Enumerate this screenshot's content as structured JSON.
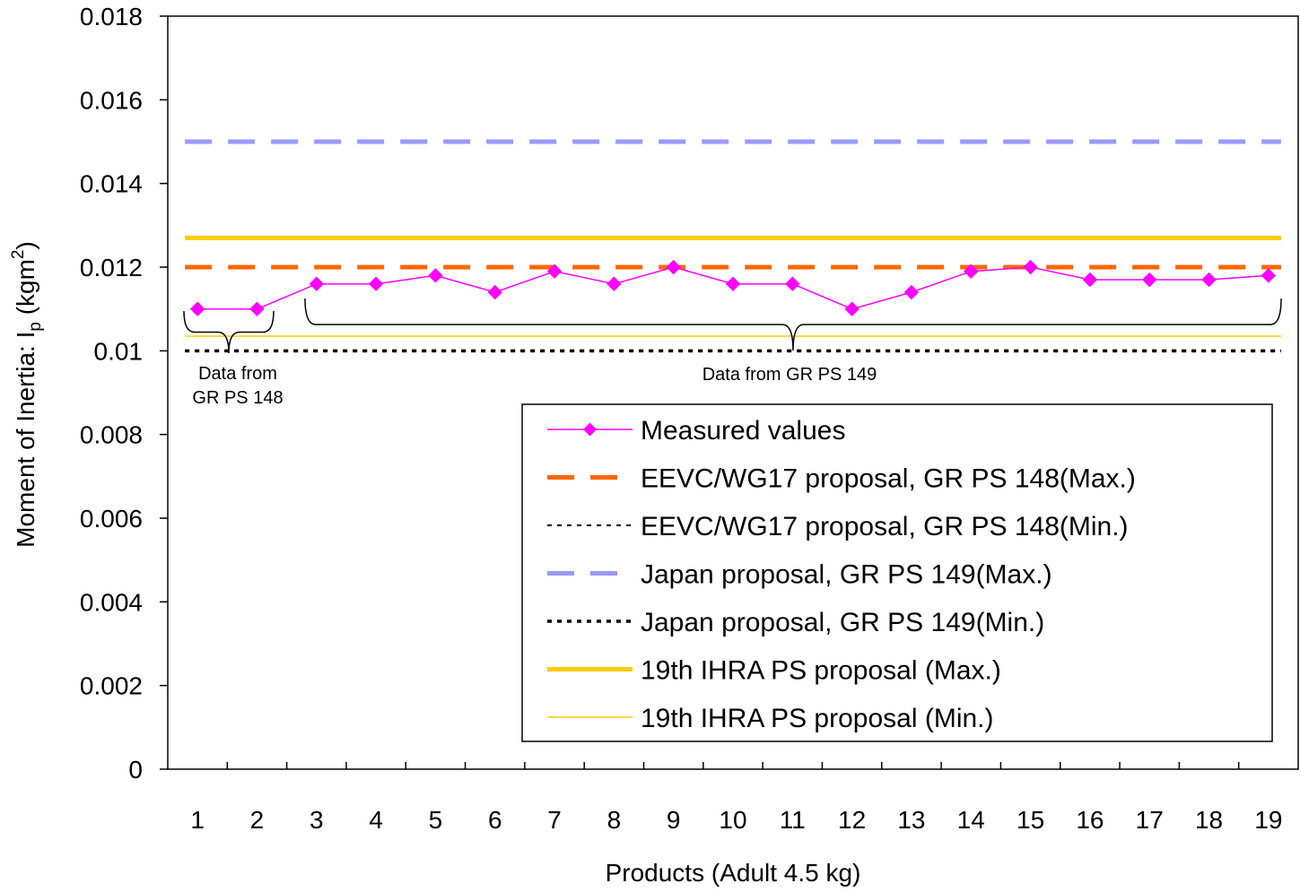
{
  "chart_data": {
    "type": "line",
    "xlabel": "Products (Adult 4.5 kg)",
    "ylabel": {
      "main": "Moment of Inertia: I",
      "sub": "p",
      "unit_open": " (kgm",
      "sup": "2",
      "unit_close": ")"
    },
    "x": [
      1,
      2,
      3,
      4,
      5,
      6,
      7,
      8,
      9,
      10,
      11,
      12,
      13,
      14,
      15,
      16,
      17,
      18,
      19
    ],
    "x_tick_labels": [
      "1",
      "2",
      "3",
      "4",
      "5",
      "6",
      "7",
      "8",
      "9",
      "10",
      "11",
      "12",
      "13",
      "14",
      "15",
      "16",
      "17",
      "18",
      "19"
    ],
    "ylim": [
      0,
      0.018
    ],
    "y_ticks": [
      0,
      0.002,
      0.004,
      0.006,
      0.008,
      0.01,
      0.012,
      0.014,
      0.016,
      0.018
    ],
    "y_tick_labels": [
      "0",
      "0.002",
      "0.004",
      "0.006",
      "0.008",
      "0.01",
      "0.012",
      "0.014",
      "0.016",
      "0.018"
    ],
    "grid": false,
    "legend_position": "bottom-right",
    "series": [
      {
        "name": "Measured values",
        "kind": "line-markers",
        "color": "#ff00ff",
        "values": [
          0.011,
          0.011,
          0.0116,
          0.0116,
          0.0118,
          0.0114,
          0.0119,
          0.0116,
          0.012,
          0.0116,
          0.0116,
          0.011,
          0.0114,
          0.0119,
          0.012,
          0.0117,
          0.0117,
          0.0117,
          0.0118
        ]
      },
      {
        "name": "EEVC/WG17 proposal, GR PS 148(Max.)",
        "kind": "hline",
        "value": 0.012,
        "color": "#ff6600",
        "style": "long-dash-thick"
      },
      {
        "name": "EEVC/WG17 proposal, GR PS 148(Min.)",
        "kind": "hline",
        "value": 0.01,
        "color": "#000000",
        "style": "dotted-thin"
      },
      {
        "name": "Japan proposal, GR PS 149(Max.)",
        "kind": "hline",
        "value": 0.015,
        "color": "#9999ff",
        "style": "long-dash-thick"
      },
      {
        "name": "Japan proposal, GR PS 149(Min.)",
        "kind": "hline",
        "value": 0.01,
        "color": "#000000",
        "style": "dotted-medium"
      },
      {
        "name": "19th IHRA PS proposal (Max.)",
        "kind": "hline",
        "value": 0.0127,
        "color": "#ffcc00",
        "style": "solid-thick"
      },
      {
        "name": "19th IHRA PS proposal (Min.)",
        "kind": "hline",
        "value": 0.01035,
        "color": "#ffcc00",
        "style": "solid-thin"
      }
    ],
    "annotations": [
      {
        "lines": [
          "Data from",
          "GR PS 148"
        ],
        "x_range": [
          1,
          2
        ]
      },
      {
        "lines": [
          "Data from GR PS 149"
        ],
        "x_range": [
          3,
          19
        ]
      }
    ]
  }
}
